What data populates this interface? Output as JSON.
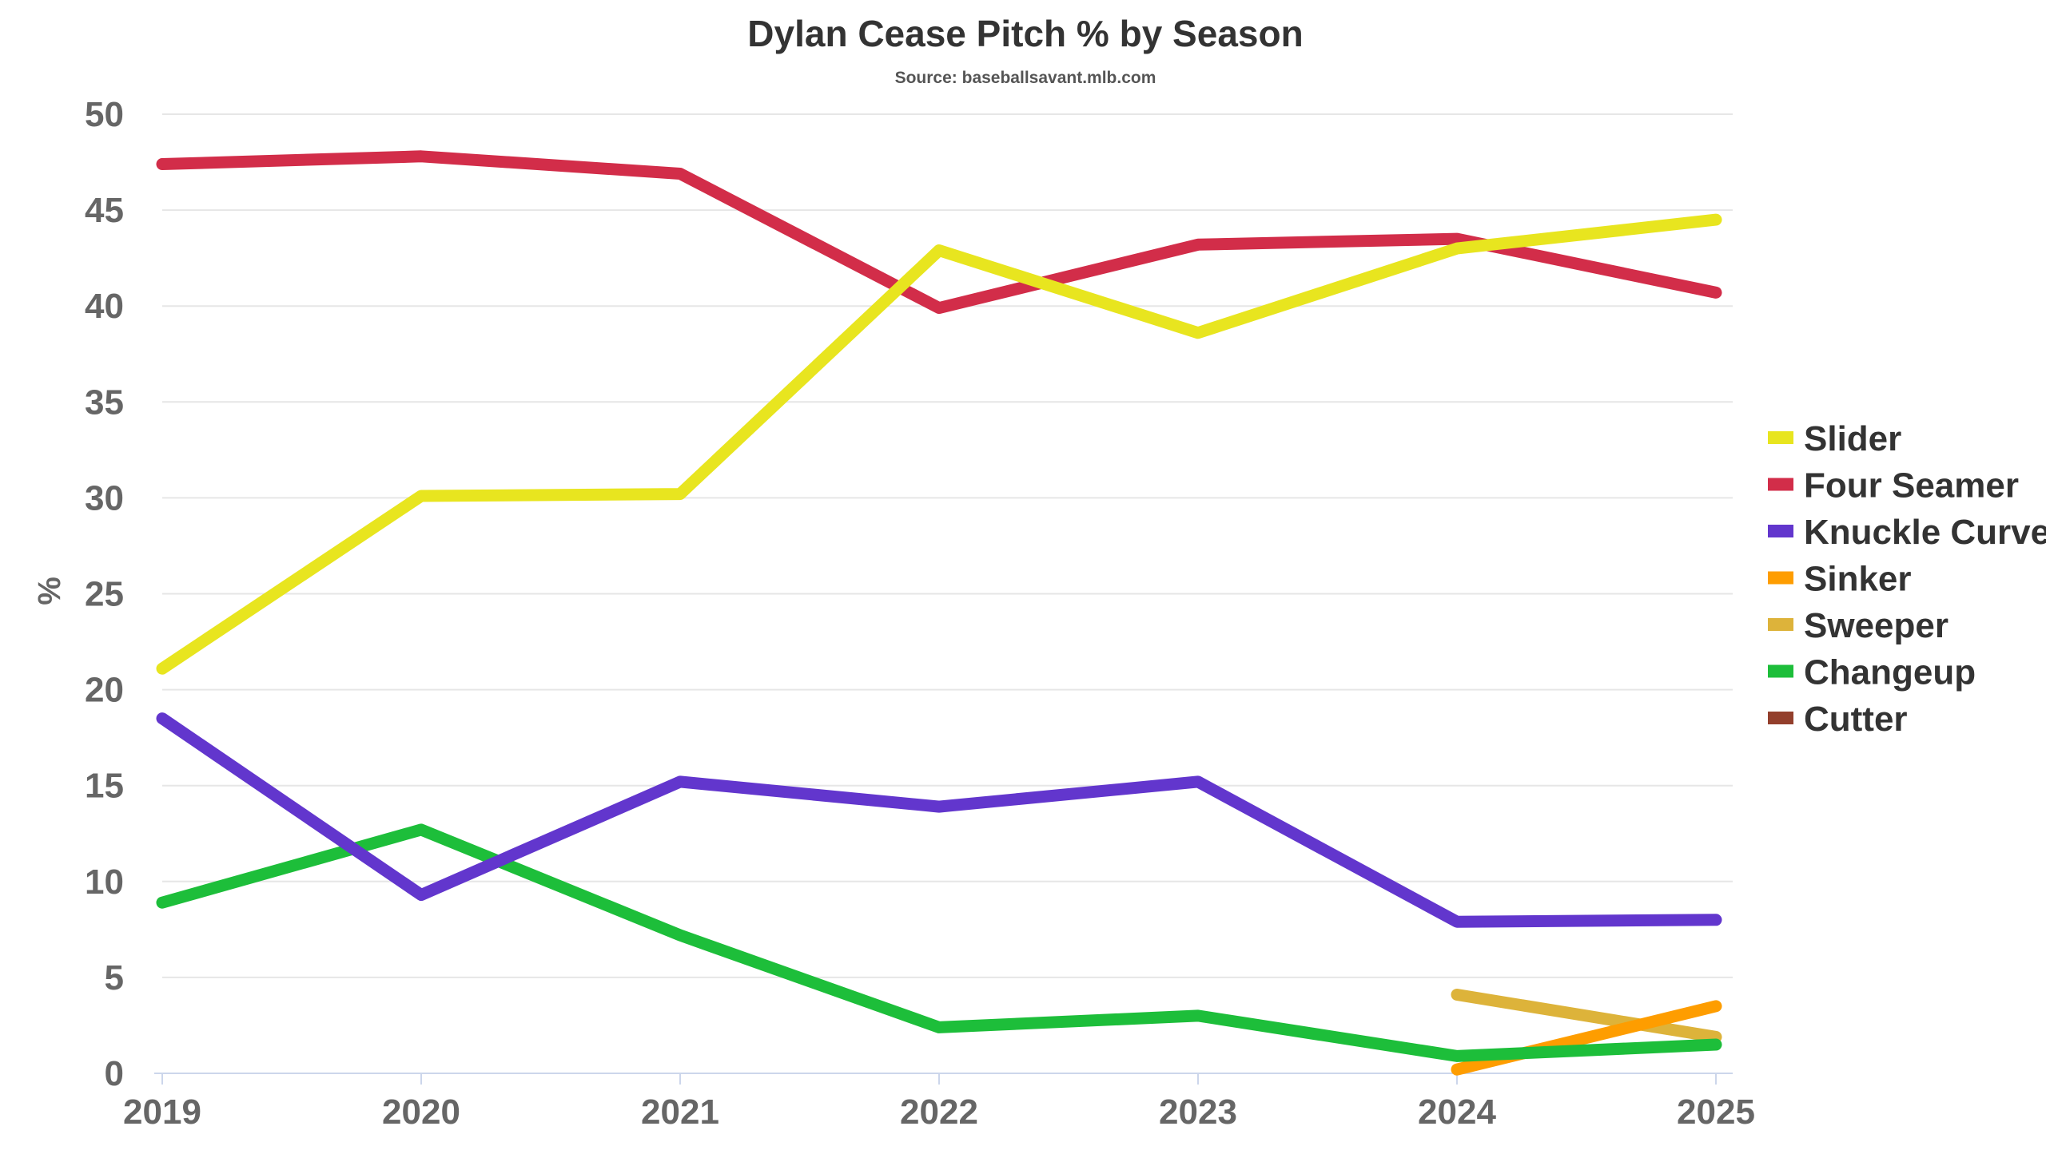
{
  "chart_data": {
    "type": "line",
    "title": "Dylan Cease Pitch % by Season",
    "subtitle": "Source: baseballsavant.mlb.com",
    "xlabel": "",
    "ylabel": "%",
    "x": [
      "2019",
      "2020",
      "2021",
      "2022",
      "2023",
      "2024",
      "2025"
    ],
    "ylim": [
      0,
      50
    ],
    "yticks": [
      "0",
      "5",
      "10",
      "15",
      "20",
      "25",
      "30",
      "35",
      "40",
      "45",
      "50"
    ],
    "grid": true,
    "legend_position": "right",
    "series": [
      {
        "name": "Slider",
        "color": "#e8e51f",
        "values": [
          21.1,
          30.1,
          30.2,
          42.9,
          38.6,
          43.0,
          44.5
        ]
      },
      {
        "name": "Four Seamer",
        "color": "#d22d49",
        "values": [
          47.4,
          47.8,
          46.9,
          39.9,
          43.2,
          43.5,
          40.7
        ]
      },
      {
        "name": "Knuckle Curve",
        "color": "#6236cd",
        "values": [
          18.5,
          9.3,
          15.2,
          13.9,
          15.2,
          7.9,
          8.0
        ]
      },
      {
        "name": "Sinker",
        "color": "#fe9d00",
        "values": [
          null,
          null,
          null,
          null,
          null,
          0.2,
          3.5
        ]
      },
      {
        "name": "Sweeper",
        "color": "#ddb33a",
        "values": [
          null,
          null,
          null,
          null,
          null,
          4.1,
          1.9
        ]
      },
      {
        "name": "Changeup",
        "color": "#1dbe3a",
        "values": [
          8.9,
          12.7,
          7.2,
          2.4,
          3.0,
          0.9,
          1.5
        ]
      },
      {
        "name": "Cutter",
        "color": "#933f2c",
        "values": [
          null,
          null,
          null,
          null,
          null,
          null,
          null
        ]
      }
    ]
  }
}
